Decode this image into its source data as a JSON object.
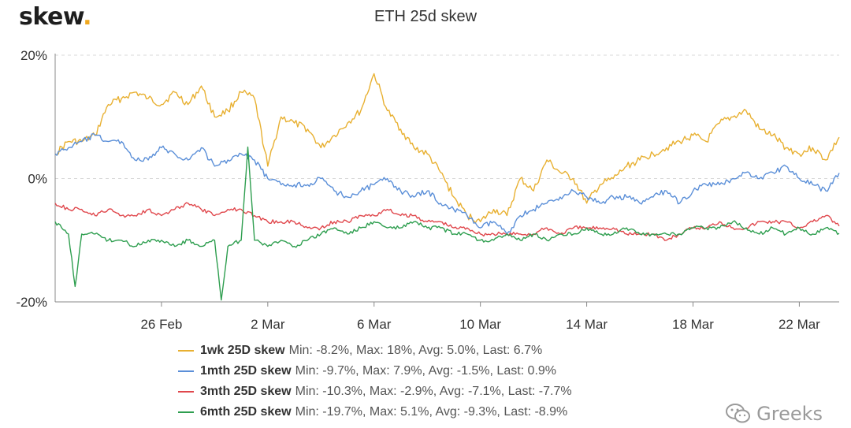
{
  "brand": {
    "name": "skew",
    "dot": "."
  },
  "watermark": {
    "text": "Greeks",
    "icon": "wechat-icon"
  },
  "chart_data": {
    "type": "line",
    "title": "ETH 25d skew",
    "xlabel": "",
    "ylabel": "",
    "x_range": [
      "2021-02-22T00:00",
      "2021-03-23T12:00"
    ],
    "ylim": [
      -20,
      20
    ],
    "y_ticks": [
      20,
      0,
      -20
    ],
    "y_tick_labels": [
      "20%",
      "0%",
      "-20%"
    ],
    "x_ticks": [
      "2021-02-26",
      "2021-03-02",
      "2021-03-06",
      "2021-03-10",
      "2021-03-14",
      "2021-03-18",
      "2021-03-22"
    ],
    "x_tick_labels": [
      "26 Feb",
      "2 Mar",
      "6 Mar",
      "10 Mar",
      "14 Mar",
      "18 Mar",
      "22 Mar"
    ],
    "grid": "horizontal dashed",
    "legend_position": "bottom",
    "series": [
      {
        "name": "1wk 25D skew",
        "stats": "Min: -8.2%, Max: 18%, Avg: 5.0%, Last: 6.7%",
        "color": "#e8b031",
        "values": [
          [
            "2021-02-22T00:00",
            4
          ],
          [
            "2021-02-22T12:00",
            6
          ],
          [
            "2021-02-23T00:00",
            6
          ],
          [
            "2021-02-23T12:00",
            7
          ],
          [
            "2021-02-24T00:00",
            12
          ],
          [
            "2021-02-24T12:00",
            13
          ],
          [
            "2021-02-25T00:00",
            14
          ],
          [
            "2021-02-25T12:00",
            13
          ],
          [
            "2021-02-26T00:00",
            12
          ],
          [
            "2021-02-26T12:00",
            14
          ],
          [
            "2021-02-27T00:00",
            12
          ],
          [
            "2021-02-27T12:00",
            15
          ],
          [
            "2021-02-28T00:00",
            10
          ],
          [
            "2021-02-28T12:00",
            11
          ],
          [
            "2021-03-01T00:00",
            14
          ],
          [
            "2021-03-01T12:00",
            13
          ],
          [
            "2021-03-02T00:00",
            2
          ],
          [
            "2021-03-02T12:00",
            10
          ],
          [
            "2021-03-03T00:00",
            9
          ],
          [
            "2021-03-03T12:00",
            8
          ],
          [
            "2021-03-04T00:00",
            5
          ],
          [
            "2021-03-04T12:00",
            7
          ],
          [
            "2021-03-05T00:00",
            9
          ],
          [
            "2021-03-05T12:00",
            11
          ],
          [
            "2021-03-06T00:00",
            17
          ],
          [
            "2021-03-06T12:00",
            11
          ],
          [
            "2021-03-07T00:00",
            8
          ],
          [
            "2021-03-07T12:00",
            5
          ],
          [
            "2021-03-08T00:00",
            4
          ],
          [
            "2021-03-08T12:00",
            1
          ],
          [
            "2021-03-09T00:00",
            -3
          ],
          [
            "2021-03-09T12:00",
            -6
          ],
          [
            "2021-03-10T00:00",
            -7
          ],
          [
            "2021-03-10T12:00",
            -5
          ],
          [
            "2021-03-11T00:00",
            -6
          ],
          [
            "2021-03-11T12:00",
            0
          ],
          [
            "2021-03-12T00:00",
            -2
          ],
          [
            "2021-03-12T12:00",
            3
          ],
          [
            "2021-03-13T00:00",
            1
          ],
          [
            "2021-03-13T12:00",
            0
          ],
          [
            "2021-03-14T00:00",
            -4
          ],
          [
            "2021-03-14T12:00",
            -1
          ],
          [
            "2021-03-15T00:00",
            0
          ],
          [
            "2021-03-15T12:00",
            2
          ],
          [
            "2021-03-16T00:00",
            3
          ],
          [
            "2021-03-16T12:00",
            4
          ],
          [
            "2021-03-17T00:00",
            5
          ],
          [
            "2021-03-17T12:00",
            6
          ],
          [
            "2021-03-18T00:00",
            7
          ],
          [
            "2021-03-18T12:00",
            6
          ],
          [
            "2021-03-19T00:00",
            9
          ],
          [
            "2021-03-19T12:00",
            10
          ],
          [
            "2021-03-20T00:00",
            11
          ],
          [
            "2021-03-20T12:00",
            8
          ],
          [
            "2021-03-21T00:00",
            7
          ],
          [
            "2021-03-21T12:00",
            5
          ],
          [
            "2021-03-22T00:00",
            4
          ],
          [
            "2021-03-22T12:00",
            5
          ],
          [
            "2021-03-23T00:00",
            3
          ],
          [
            "2021-03-23T12:00",
            6.7
          ]
        ]
      },
      {
        "name": "1mth 25D skew",
        "stats": "Min: -9.7%, Max: 7.9%, Avg: -1.5%, Last: 0.9%",
        "color": "#5b8fd8",
        "values": [
          [
            "2021-02-22T00:00",
            4
          ],
          [
            "2021-02-22T12:00",
            5
          ],
          [
            "2021-02-23T00:00",
            6
          ],
          [
            "2021-02-23T12:00",
            7
          ],
          [
            "2021-02-24T00:00",
            6
          ],
          [
            "2021-02-24T12:00",
            6
          ],
          [
            "2021-02-25T00:00",
            3
          ],
          [
            "2021-02-25T12:00",
            3
          ],
          [
            "2021-02-26T00:00",
            5
          ],
          [
            "2021-02-26T12:00",
            4
          ],
          [
            "2021-02-27T00:00",
            3
          ],
          [
            "2021-02-27T12:00",
            5
          ],
          [
            "2021-02-28T00:00",
            2
          ],
          [
            "2021-02-28T12:00",
            3
          ],
          [
            "2021-03-01T00:00",
            4
          ],
          [
            "2021-03-01T12:00",
            3
          ],
          [
            "2021-03-02T00:00",
            0
          ],
          [
            "2021-03-02T12:00",
            -1
          ],
          [
            "2021-03-03T00:00",
            -1
          ],
          [
            "2021-03-03T12:00",
            -1
          ],
          [
            "2021-03-04T00:00",
            0
          ],
          [
            "2021-03-04T12:00",
            -2
          ],
          [
            "2021-03-05T00:00",
            -3
          ],
          [
            "2021-03-05T12:00",
            -2
          ],
          [
            "2021-03-06T00:00",
            -1
          ],
          [
            "2021-03-06T12:00",
            0
          ],
          [
            "2021-03-07T00:00",
            -2
          ],
          [
            "2021-03-07T12:00",
            -3
          ],
          [
            "2021-03-08T00:00",
            -2
          ],
          [
            "2021-03-08T12:00",
            -4
          ],
          [
            "2021-03-09T00:00",
            -5
          ],
          [
            "2021-03-09T12:00",
            -6
          ],
          [
            "2021-03-10T00:00",
            -8
          ],
          [
            "2021-03-10T12:00",
            -7
          ],
          [
            "2021-03-11T00:00",
            -9
          ],
          [
            "2021-03-11T12:00",
            -6
          ],
          [
            "2021-03-12T00:00",
            -5
          ],
          [
            "2021-03-12T12:00",
            -4
          ],
          [
            "2021-03-13T00:00",
            -3
          ],
          [
            "2021-03-13T12:00",
            -2
          ],
          [
            "2021-03-14T00:00",
            -3
          ],
          [
            "2021-03-14T12:00",
            -4
          ],
          [
            "2021-03-15T00:00",
            -3
          ],
          [
            "2021-03-15T12:00",
            -3
          ],
          [
            "2021-03-16T00:00",
            -4
          ],
          [
            "2021-03-16T12:00",
            -3
          ],
          [
            "2021-03-17T00:00",
            -2
          ],
          [
            "2021-03-17T12:00",
            -4
          ],
          [
            "2021-03-18T00:00",
            -2
          ],
          [
            "2021-03-18T12:00",
            -1
          ],
          [
            "2021-03-19T00:00",
            -1
          ],
          [
            "2021-03-19T12:00",
            0
          ],
          [
            "2021-03-20T00:00",
            1
          ],
          [
            "2021-03-20T12:00",
            0
          ],
          [
            "2021-03-21T00:00",
            1
          ],
          [
            "2021-03-21T12:00",
            2
          ],
          [
            "2021-03-22T00:00",
            0
          ],
          [
            "2021-03-22T12:00",
            -1
          ],
          [
            "2021-03-23T00:00",
            -2
          ],
          [
            "2021-03-23T12:00",
            0.9
          ]
        ]
      },
      {
        "name": "3mth 25D skew",
        "stats": "Min: -10.3%, Max: -2.9%, Avg: -7.1%, Last: -7.7%",
        "color": "#e0474c",
        "values": [
          [
            "2021-02-22T00:00",
            -4
          ],
          [
            "2021-02-22T12:00",
            -5
          ],
          [
            "2021-02-23T00:00",
            -5
          ],
          [
            "2021-02-23T12:00",
            -6
          ],
          [
            "2021-02-24T00:00",
            -5
          ],
          [
            "2021-02-24T12:00",
            -6
          ],
          [
            "2021-02-25T00:00",
            -6
          ],
          [
            "2021-02-25T12:00",
            -5
          ],
          [
            "2021-02-26T00:00",
            -6
          ],
          [
            "2021-02-26T12:00",
            -5
          ],
          [
            "2021-02-27T00:00",
            -4
          ],
          [
            "2021-02-27T12:00",
            -5
          ],
          [
            "2021-02-28T00:00",
            -6
          ],
          [
            "2021-02-28T12:00",
            -5
          ],
          [
            "2021-03-01T00:00",
            -5
          ],
          [
            "2021-03-01T12:00",
            -6
          ],
          [
            "2021-03-02T00:00",
            -7
          ],
          [
            "2021-03-02T12:00",
            -7
          ],
          [
            "2021-03-03T00:00",
            -7
          ],
          [
            "2021-03-03T12:00",
            -8
          ],
          [
            "2021-03-04T00:00",
            -8
          ],
          [
            "2021-03-04T12:00",
            -7
          ],
          [
            "2021-03-05T00:00",
            -7
          ],
          [
            "2021-03-05T12:00",
            -6
          ],
          [
            "2021-03-06T00:00",
            -6
          ],
          [
            "2021-03-06T12:00",
            -5
          ],
          [
            "2021-03-07T00:00",
            -6
          ],
          [
            "2021-03-07T12:00",
            -6
          ],
          [
            "2021-03-08T00:00",
            -7
          ],
          [
            "2021-03-08T12:00",
            -7
          ],
          [
            "2021-03-09T00:00",
            -8
          ],
          [
            "2021-03-09T12:00",
            -8
          ],
          [
            "2021-03-10T00:00",
            -9
          ],
          [
            "2021-03-10T12:00",
            -9
          ],
          [
            "2021-03-11T00:00",
            -9
          ],
          [
            "2021-03-11T12:00",
            -9
          ],
          [
            "2021-03-12T00:00",
            -9
          ],
          [
            "2021-03-12T12:00",
            -8
          ],
          [
            "2021-03-13T00:00",
            -9
          ],
          [
            "2021-03-13T12:00",
            -8
          ],
          [
            "2021-03-14T00:00",
            -8
          ],
          [
            "2021-03-14T12:00",
            -8
          ],
          [
            "2021-03-15T00:00",
            -8
          ],
          [
            "2021-03-15T12:00",
            -9
          ],
          [
            "2021-03-16T00:00",
            -9
          ],
          [
            "2021-03-16T12:00",
            -9
          ],
          [
            "2021-03-17T00:00",
            -10
          ],
          [
            "2021-03-17T12:00",
            -9
          ],
          [
            "2021-03-18T00:00",
            -8
          ],
          [
            "2021-03-18T12:00",
            -8
          ],
          [
            "2021-03-19T00:00",
            -7
          ],
          [
            "2021-03-19T12:00",
            -8
          ],
          [
            "2021-03-20T00:00",
            -8
          ],
          [
            "2021-03-20T12:00",
            -7
          ],
          [
            "2021-03-21T00:00",
            -7
          ],
          [
            "2021-03-21T12:00",
            -7
          ],
          [
            "2021-03-22T00:00",
            -8
          ],
          [
            "2021-03-22T12:00",
            -7
          ],
          [
            "2021-03-23T00:00",
            -6
          ],
          [
            "2021-03-23T12:00",
            -7.7
          ]
        ]
      },
      {
        "name": "6mth 25D skew",
        "stats": "Min: -19.7%, Max: 5.1%, Avg: -9.3%, Last: -8.9%",
        "color": "#2e9e4f",
        "values": [
          [
            "2021-02-22T00:00",
            -7
          ],
          [
            "2021-02-22T12:00",
            -9
          ],
          [
            "2021-02-22T18:00",
            -17.5
          ],
          [
            "2021-02-23T00:00",
            -9
          ],
          [
            "2021-02-23T12:00",
            -9
          ],
          [
            "2021-02-24T00:00",
            -10
          ],
          [
            "2021-02-24T12:00",
            -10
          ],
          [
            "2021-02-25T00:00",
            -11
          ],
          [
            "2021-02-25T12:00",
            -10
          ],
          [
            "2021-02-26T00:00",
            -10
          ],
          [
            "2021-02-26T12:00",
            -11
          ],
          [
            "2021-02-27T00:00",
            -10
          ],
          [
            "2021-02-27T12:00",
            -11
          ],
          [
            "2021-02-28T00:00",
            -10
          ],
          [
            "2021-02-28T06:00",
            -19.7
          ],
          [
            "2021-02-28T12:00",
            -11
          ],
          [
            "2021-03-01T00:00",
            -10
          ],
          [
            "2021-03-01T06:00",
            5.1
          ],
          [
            "2021-03-01T12:00",
            -10
          ],
          [
            "2021-03-02T00:00",
            -11
          ],
          [
            "2021-03-02T12:00",
            -10
          ],
          [
            "2021-03-03T00:00",
            -11
          ],
          [
            "2021-03-03T12:00",
            -10
          ],
          [
            "2021-03-04T00:00",
            -9
          ],
          [
            "2021-03-04T12:00",
            -8
          ],
          [
            "2021-03-05T00:00",
            -9
          ],
          [
            "2021-03-05T12:00",
            -8
          ],
          [
            "2021-03-06T00:00",
            -7
          ],
          [
            "2021-03-06T12:00",
            -8
          ],
          [
            "2021-03-07T00:00",
            -8
          ],
          [
            "2021-03-07T12:00",
            -7
          ],
          [
            "2021-03-08T00:00",
            -8
          ],
          [
            "2021-03-08T12:00",
            -8
          ],
          [
            "2021-03-09T00:00",
            -9
          ],
          [
            "2021-03-09T12:00",
            -9
          ],
          [
            "2021-03-10T00:00",
            -10
          ],
          [
            "2021-03-10T12:00",
            -10
          ],
          [
            "2021-03-11T00:00",
            -9
          ],
          [
            "2021-03-11T12:00",
            -10
          ],
          [
            "2021-03-12T00:00",
            -9
          ],
          [
            "2021-03-12T12:00",
            -10
          ],
          [
            "2021-03-13T00:00",
            -9
          ],
          [
            "2021-03-13T12:00",
            -9
          ],
          [
            "2021-03-14T00:00",
            -8
          ],
          [
            "2021-03-14T12:00",
            -9
          ],
          [
            "2021-03-15T00:00",
            -9
          ],
          [
            "2021-03-15T12:00",
            -8
          ],
          [
            "2021-03-16T00:00",
            -9
          ],
          [
            "2021-03-16T12:00",
            -9
          ],
          [
            "2021-03-17T00:00",
            -9
          ],
          [
            "2021-03-17T12:00",
            -9
          ],
          [
            "2021-03-18T00:00",
            -8
          ],
          [
            "2021-03-18T12:00",
            -8
          ],
          [
            "2021-03-19T00:00",
            -8
          ],
          [
            "2021-03-19T12:00",
            -7
          ],
          [
            "2021-03-20T00:00",
            -8
          ],
          [
            "2021-03-20T12:00",
            -9
          ],
          [
            "2021-03-21T00:00",
            -8
          ],
          [
            "2021-03-21T12:00",
            -9
          ],
          [
            "2021-03-22T00:00",
            -8
          ],
          [
            "2021-03-22T12:00",
            -9
          ],
          [
            "2021-03-23T00:00",
            -8
          ],
          [
            "2021-03-23T12:00",
            -8.9
          ]
        ]
      }
    ]
  }
}
